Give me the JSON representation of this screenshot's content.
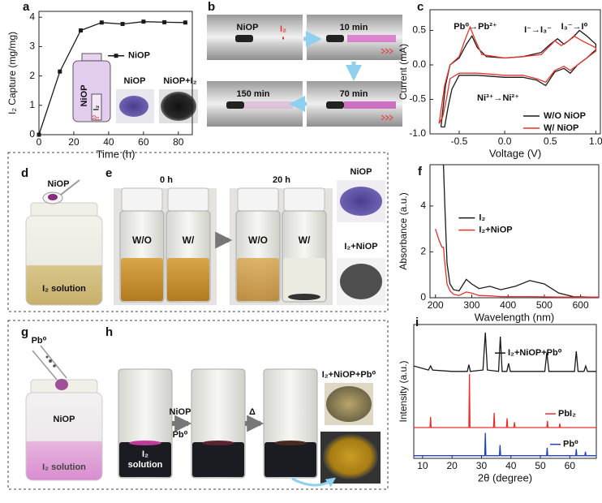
{
  "panel_labels": [
    "a",
    "b",
    "c",
    "d",
    "e",
    "f",
    "g",
    "h",
    "i"
  ],
  "chart_data": [
    {
      "type": "line",
      "xlabel": "Time (h)",
      "ylabel": "I₂ Capture (mg/mg)",
      "x": [
        0,
        12,
        24,
        36,
        48,
        60,
        72,
        84
      ],
      "series": [
        {
          "name": "NiOP",
          "color": "#1a1a1a",
          "marker": "square",
          "values": [
            0,
            2.15,
            3.55,
            3.82,
            3.77,
            3.85,
            3.83,
            3.82
          ]
        }
      ],
      "xlim": [
        0,
        88
      ],
      "ylim": [
        0,
        4.2
      ],
      "xticks": [
        0,
        20,
        40,
        60,
        80
      ],
      "yticks": [
        0,
        1,
        2,
        3,
        4
      ],
      "legend": "right"
    },
    {
      "type": "line",
      "xlabel": "Voltage (V)",
      "ylabel": "Current (mA)",
      "annotations": [
        "Pb⁰→Pb²⁺",
        "I⁻→I₃⁻",
        "I₃⁻→I⁰",
        "Ni³⁺→Ni²⁺"
      ],
      "series": [
        {
          "name": "W/O NiOP",
          "color": "#1a1a1a",
          "x": [
            -0.7,
            -0.65,
            -0.6,
            -0.5,
            -0.42,
            -0.36,
            -0.3,
            -0.2,
            0,
            0.2,
            0.4,
            0.5,
            0.58,
            0.65,
            0.75,
            0.82,
            0.9,
            1.0,
            1.0,
            0.9,
            0.8,
            0.72,
            0.65,
            0.55,
            0.45,
            0.35,
            0.2,
            0,
            -0.3,
            -0.5,
            -0.58,
            -0.62,
            -0.66,
            -0.7
          ],
          "values": [
            -0.9,
            -0.3,
            0.0,
            0.1,
            0.3,
            0.42,
            0.25,
            0.12,
            0.1,
            0.12,
            0.18,
            0.3,
            0.38,
            0.3,
            0.4,
            0.5,
            0.42,
            0.3,
            0.22,
            0.1,
            0.0,
            -0.12,
            -0.05,
            -0.1,
            -0.3,
            -0.22,
            -0.18,
            -0.18,
            -0.15,
            -0.15,
            -0.35,
            -0.6,
            -0.9,
            -0.9
          ]
        },
        {
          "name": "W/ NiOP",
          "color": "#e8312a",
          "x": [
            -0.72,
            -0.66,
            -0.6,
            -0.5,
            -0.44,
            -0.38,
            -0.32,
            -0.25,
            0,
            0.2,
            0.4,
            0.5,
            0.55,
            0.62,
            0.7,
            0.76,
            0.85,
            1.0,
            1.0,
            0.9,
            0.8,
            0.72,
            0.65,
            0.55,
            0.45,
            0.35,
            0.2,
            0,
            -0.3,
            -0.5,
            -0.6,
            -0.64,
            -0.68,
            -0.72
          ],
          "values": [
            -0.85,
            -0.3,
            0.0,
            0.12,
            0.35,
            0.55,
            0.35,
            0.15,
            0.1,
            0.12,
            0.15,
            0.28,
            0.35,
            0.28,
            0.35,
            0.42,
            0.35,
            0.25,
            0.2,
            0.1,
            0.0,
            -0.08,
            -0.02,
            -0.08,
            -0.25,
            -0.2,
            -0.15,
            -0.15,
            -0.12,
            -0.12,
            -0.2,
            -0.5,
            -0.75,
            -0.85
          ]
        }
      ],
      "xlim": [
        -0.82,
        1.05
      ],
      "ylim": [
        -1,
        0.8
      ],
      "xticks": [
        -0.5,
        {
          "value": 0,
          "label": "0.0"
        },
        0.5,
        {
          "value": 1,
          "label": "1.0"
        }
      ],
      "yticks": [
        {
          "value": -1,
          "label": "-1.0"
        },
        -0.5,
        {
          "value": 0,
          "label": "0.0"
        },
        0.5
      ],
      "legend": "lower right"
    },
    {
      "type": "line",
      "xlabel": "Wavelength (nm)",
      "ylabel": "Absorbance (a.u.)",
      "x": [
        200,
        210,
        218,
        222,
        226,
        232,
        240,
        250,
        265,
        285,
        300,
        320,
        350,
        380,
        420,
        460,
        500,
        540,
        580,
        650
      ],
      "series": [
        {
          "name": "I₂",
          "color": "#1a1a1a",
          "values": [
            null,
            null,
            null,
            5.8,
            4,
            1.5,
            0.6,
            0.35,
            0.3,
            0.8,
            0.6,
            0.4,
            0.5,
            0.35,
            0.5,
            0.75,
            0.6,
            0.2,
            0.05,
            0.02
          ]
        },
        {
          "name": "I₂+NiOP",
          "color": "#e8312a",
          "values": [
            3.0,
            2.5,
            2.2,
            2.2,
            1.5,
            0.6,
            0.3,
            0.15,
            0.1,
            0.25,
            0.2,
            0.1,
            0.08,
            0.05,
            0.05,
            0.05,
            0.04,
            0.03,
            0.03,
            0.03
          ]
        }
      ],
      "xlim": [
        185,
        650
      ],
      "ylim": [
        0,
        5.8
      ],
      "xticks": [
        200,
        300,
        400,
        500,
        600
      ],
      "yticks": [
        0,
        2,
        4
      ],
      "legend": "center"
    },
    {
      "type": "line",
      "xlabel": "2θ (degree)",
      "ylabel": "Intensity (a.u.)",
      "series": [
        {
          "name": "I₂+NiOP+Pb⁰",
          "color": "#1a1a1a",
          "x": [
            7,
            12,
            12.7,
            13.4,
            20,
            25.2,
            25.7,
            26.2,
            30.5,
            31.3,
            32,
            35.8,
            36.4,
            37,
            38.6,
            39.2,
            39.8,
            51.5,
            52.2,
            52.9,
            61.6,
            62.2,
            62.8,
            64.8,
            65.4,
            66,
            69
          ],
          "values": [
            6.9,
            6.6,
            6.9,
            6.6,
            6.5,
            6.5,
            7.0,
            6.5,
            6.6,
            9.4,
            6.6,
            6.5,
            9.1,
            6.5,
            6.5,
            7.1,
            6.5,
            6.5,
            7.9,
            6.5,
            6.5,
            8.0,
            6.5,
            6.5,
            6.9,
            6.5,
            6.5
          ]
        },
        {
          "name": "PbI₂",
          "color": "#e8312a",
          "x": [
            7,
            12.5,
            12.7,
            12.9,
            25.7,
            25.9,
            26.1,
            34.1,
            34.3,
            34.5,
            38.5,
            38.7,
            38.9,
            41,
            41.2,
            41.4,
            52.2,
            52.4,
            52.6,
            56.4,
            56.6,
            56.8,
            69
          ],
          "values": [
            2.3,
            2.3,
            3.1,
            2.3,
            2.3,
            6.3,
            2.3,
            2.3,
            3.4,
            2.3,
            2.3,
            3.0,
            2.3,
            2.3,
            2.7,
            2.3,
            2.3,
            2.8,
            2.3,
            2.3,
            2.6,
            2.3,
            2.3
          ]
        },
        {
          "name": "Pb⁰",
          "color": "#1f3fcf",
          "x": [
            7,
            31.1,
            31.3,
            31.5,
            36.1,
            36.3,
            36.5,
            52.1,
            52.3,
            52.5,
            62,
            62.2,
            62.4,
            65.1,
            65.3,
            65.5,
            69
          ],
          "values": [
            0.2,
            0.2,
            1.9,
            0.2,
            0.2,
            1.0,
            0.2,
            0.2,
            0.8,
            0.2,
            0.2,
            0.7,
            0.2,
            0.2,
            0.5,
            0.2,
            0.2
          ]
        }
      ],
      "xlim": [
        7,
        69
      ],
      "ylim": [
        0,
        10
      ],
      "xticks": [
        10,
        20,
        30,
        40,
        50,
        60
      ],
      "legend": "inline"
    }
  ],
  "panel_a_inset": {
    "jar": [
      "NiOP",
      "I₂"
    ],
    "photos": [
      "NiOP",
      "NiOP+I₂"
    ]
  },
  "panel_b": {
    "labels": [
      "NiOP",
      "I₂",
      "10 min",
      "70 min",
      "150 min"
    ]
  },
  "panel_d": {
    "spoon": "NiOP",
    "solution": "I₂ solution"
  },
  "panel_e": {
    "times": [
      "0 h",
      "20 h"
    ],
    "vials": [
      "W/O",
      "W/",
      "W/O",
      "W/"
    ],
    "powders": [
      "NiOP",
      "I₂+NiOP"
    ]
  },
  "panel_g": {
    "tube": "Pb⁰",
    "powder": "NiOP",
    "solution": "I₂ solution"
  },
  "panel_h": {
    "vial_label": [
      "I₂",
      "solution"
    ],
    "step1": [
      "NiOP",
      "Pb⁰"
    ],
    "step2": "Δ",
    "product": "I₂+NiOP+Pb⁰"
  }
}
